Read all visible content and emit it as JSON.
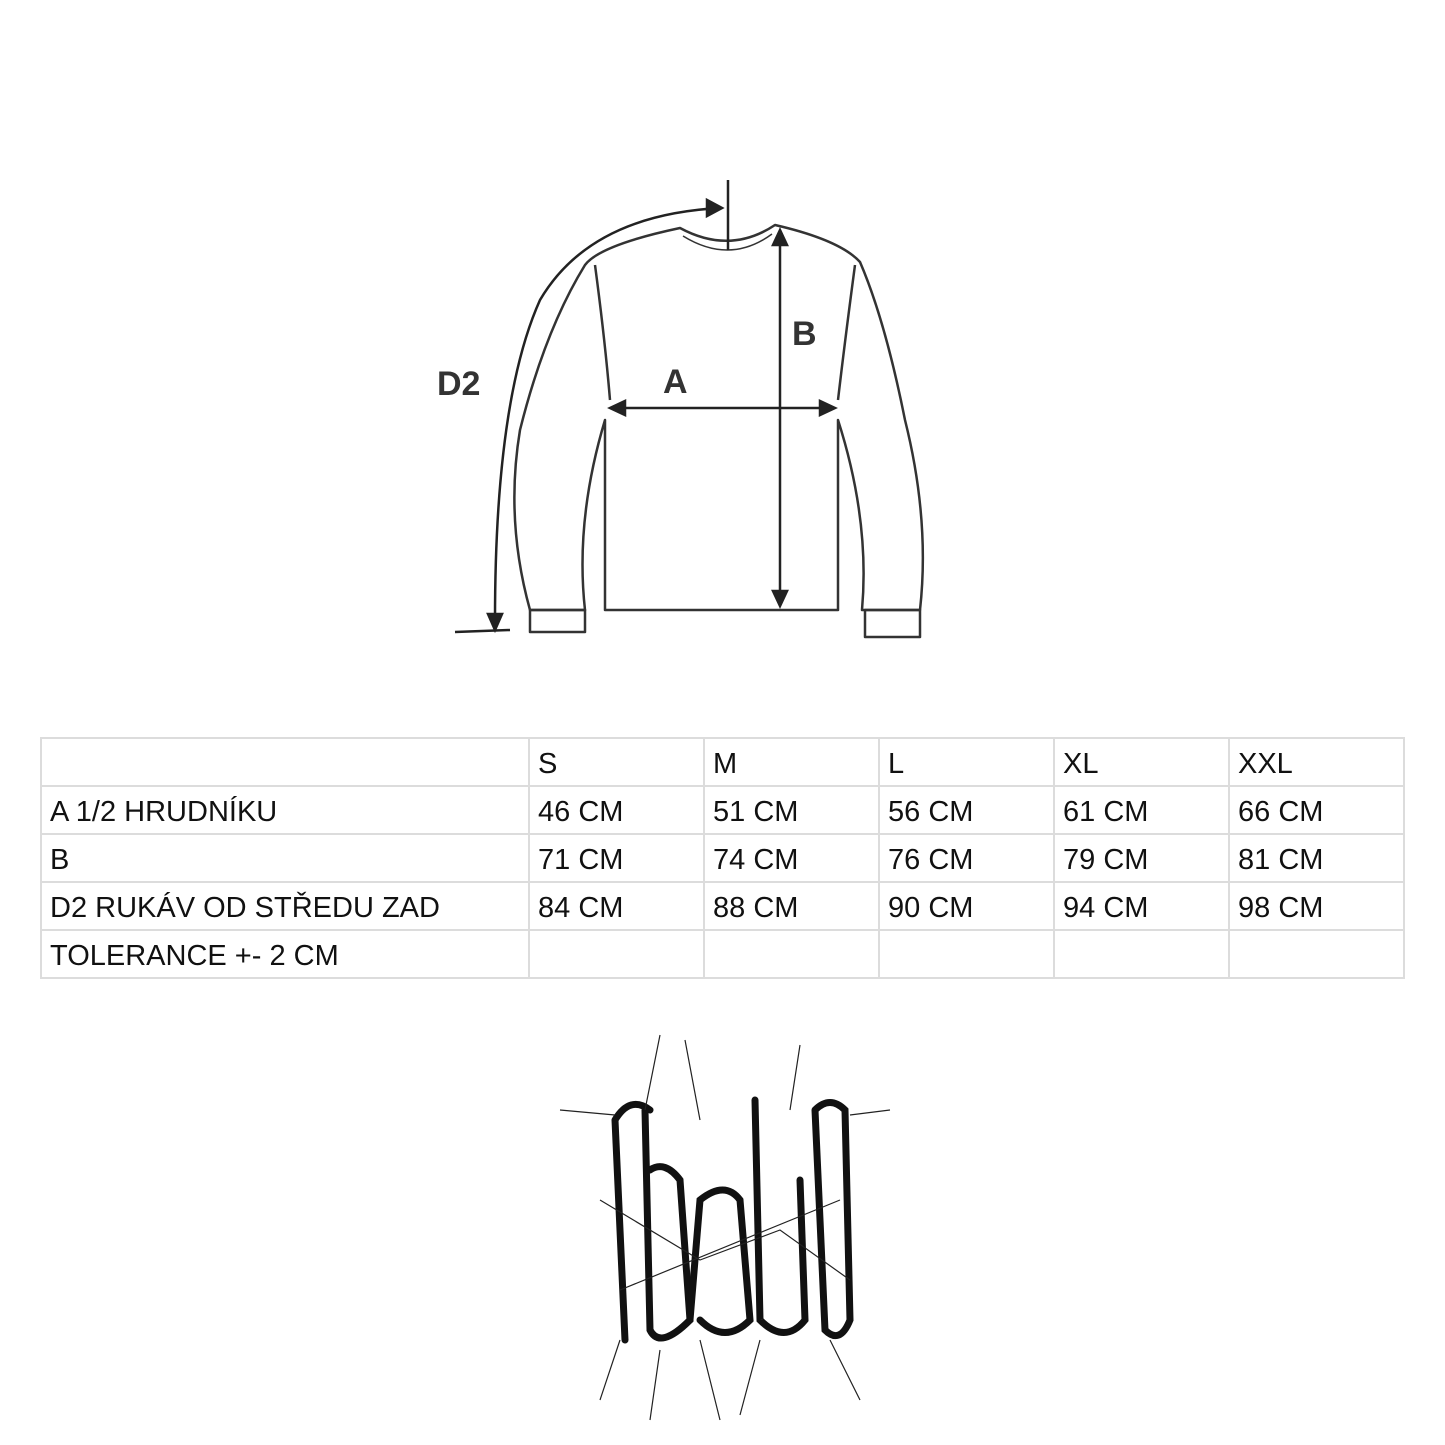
{
  "diagram": {
    "labels": {
      "a": "A",
      "b": "B",
      "d2": "D2"
    }
  },
  "table": {
    "headers": [
      "",
      "S",
      "M",
      "L",
      "XL",
      "XXL"
    ],
    "rows": [
      {
        "label": "A 1/2 HRUDNÍKU",
        "values": [
          "46 CM",
          "51 CM",
          "56 CM",
          "61 CM",
          "66 CM"
        ]
      },
      {
        "label": "B",
        "values": [
          "71 CM",
          "74 CM",
          "76 CM",
          "79 CM",
          "81 CM"
        ]
      },
      {
        "label": "D2 RUKÁV OD STŘEDU ZAD",
        "values": [
          "84 CM",
          "88 CM",
          "90 CM",
          "94 CM",
          "98 CM"
        ]
      },
      {
        "label": "TOLERANCE +- 2 CM",
        "values": [
          "",
          "",
          "",
          "",
          ""
        ]
      }
    ]
  },
  "logo": {
    "text": "logo"
  }
}
